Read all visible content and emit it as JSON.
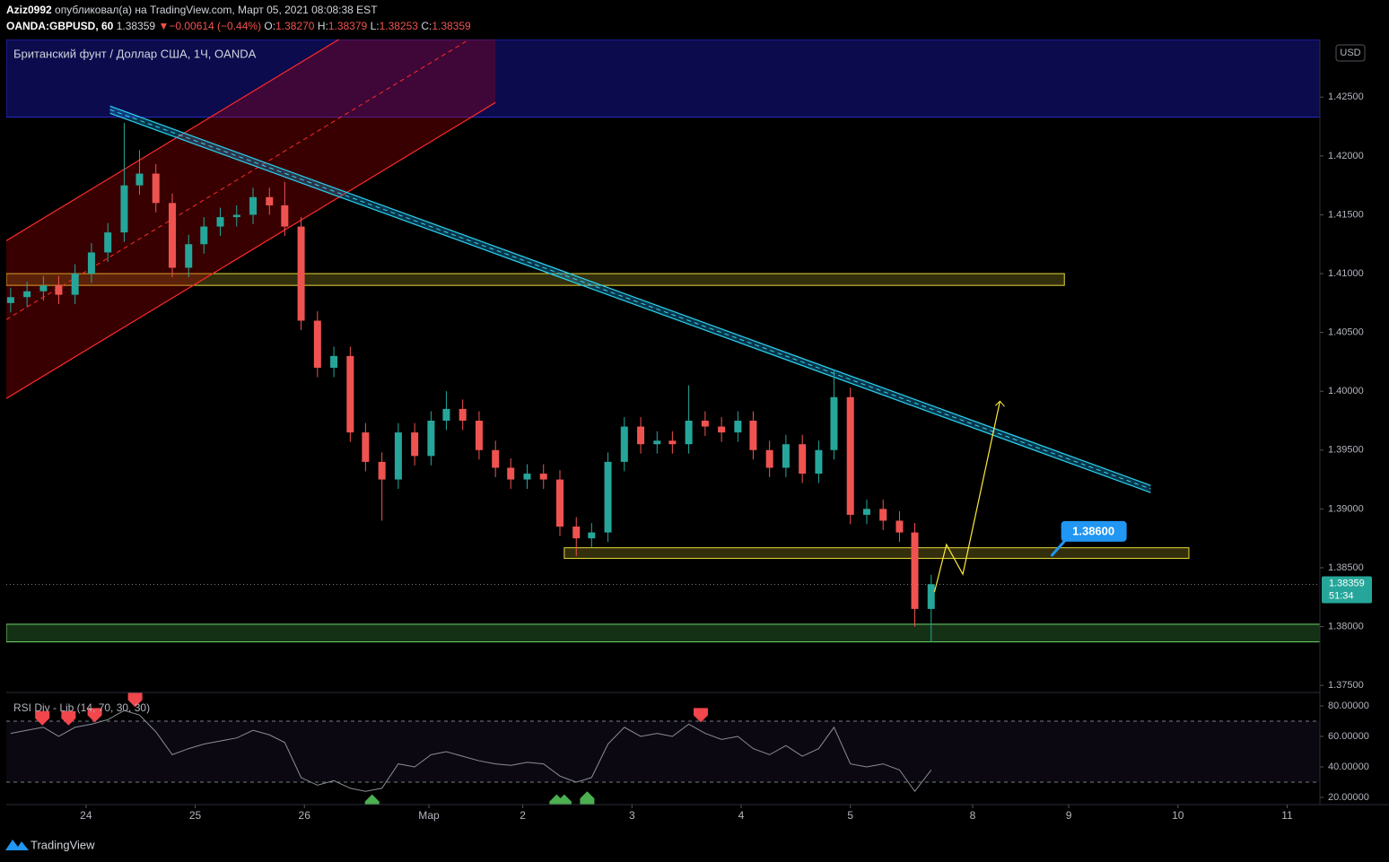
{
  "header": {
    "author": "Aziz0992",
    "published": "опубликовал(а) на TradingView.com, Март 05, 2021 08:08:38 EST",
    "symbol": "OANDA:GBPUSD, 60",
    "last": "1.38359",
    "arrow": "▼",
    "change": "−0.00614 (−0.44%)",
    "ohlc": [
      {
        "label": "O:",
        "value": "1.38270"
      },
      {
        "label": "H:",
        "value": "1.38379"
      },
      {
        "label": "L:",
        "value": "1.38253"
      },
      {
        "label": "C:",
        "value": "1.38359"
      }
    ]
  },
  "footer": "TradingView",
  "chart_data": {
    "type": "candlestick",
    "title": "Британский фунт / Доллар США, 1Ч, OANDA",
    "currency": "USD",
    "up_color": "#26a69a",
    "down_color": "#ef5350",
    "xlim": [
      -0.73,
      11.3
    ],
    "ylim": [
      1.3744,
      1.4299
    ],
    "xticks": [
      {
        "value": 0,
        "label": "24"
      },
      {
        "value": 1,
        "label": "25"
      },
      {
        "value": 2,
        "label": "26"
      },
      {
        "value": 3.14,
        "label": "Мар"
      },
      {
        "value": 4,
        "label": "2"
      },
      {
        "value": 5,
        "label": "3"
      },
      {
        "value": 6,
        "label": "4"
      },
      {
        "value": 7,
        "label": "5"
      },
      {
        "value": 8.12,
        "label": "8"
      },
      {
        "value": 9,
        "label": "9"
      },
      {
        "value": 10,
        "label": "10"
      },
      {
        "value": 11,
        "label": "11"
      }
    ],
    "yticks": [
      {
        "value": 1.425,
        "label": "1.42500"
      },
      {
        "value": 1.42,
        "label": "1.42000"
      },
      {
        "value": 1.415,
        "label": "1.41500"
      },
      {
        "value": 1.41,
        "label": "1.41000"
      },
      {
        "value": 1.405,
        "label": "1.40500"
      },
      {
        "value": 1.4,
        "label": "1.40000"
      },
      {
        "value": 1.395,
        "label": "1.39500"
      },
      {
        "value": 1.39,
        "label": "1.39000"
      },
      {
        "value": 1.385,
        "label": "1.38500"
      },
      {
        "value": 1.38,
        "label": "1.38000"
      },
      {
        "value": 1.375,
        "label": "1.37500"
      }
    ],
    "candles": {
      "x": [
        -0.69,
        -0.54,
        -0.39,
        -0.25,
        -0.1,
        0.05,
        0.2,
        0.35,
        0.49,
        0.64,
        0.79,
        0.94,
        1.08,
        1.23,
        1.38,
        1.53,
        1.68,
        1.82,
        1.97,
        2.12,
        2.27,
        2.42,
        2.56,
        2.71,
        2.86,
        3.01,
        3.16,
        3.3,
        3.45,
        3.6,
        3.75,
        3.89,
        4.04,
        4.19,
        4.34,
        4.49,
        4.63,
        4.78,
        4.93,
        5.08,
        5.23,
        5.37,
        5.52,
        5.67,
        5.82,
        5.97,
        6.11,
        6.26,
        6.41,
        6.56,
        6.71,
        6.85,
        7.0,
        7.15,
        7.3,
        7.45,
        7.59,
        7.74
      ],
      "open": [
        1.4075,
        1.408,
        1.4085,
        1.409,
        1.4082,
        1.41,
        1.4118,
        1.4135,
        1.4175,
        1.4185,
        1.416,
        1.4105,
        1.4125,
        1.414,
        1.4148,
        1.415,
        1.4165,
        1.4158,
        1.414,
        1.406,
        1.402,
        1.403,
        1.3965,
        1.394,
        1.3925,
        1.3965,
        1.3945,
        1.3975,
        1.3985,
        1.3975,
        1.395,
        1.3935,
        1.3925,
        1.393,
        1.3925,
        1.3885,
        1.3875,
        1.388,
        1.394,
        1.397,
        1.3955,
        1.3958,
        1.3955,
        1.3975,
        1.397,
        1.3965,
        1.3975,
        1.395,
        1.3935,
        1.3955,
        1.393,
        1.395,
        1.3995,
        1.3895,
        1.39,
        1.389,
        1.388,
        1.3815
      ],
      "high": [
        1.4088,
        1.4093,
        1.4098,
        1.4098,
        1.4108,
        1.4126,
        1.4143,
        1.4228,
        1.4205,
        1.4193,
        1.4168,
        1.4133,
        1.4148,
        1.4156,
        1.4158,
        1.4173,
        1.4173,
        1.4178,
        1.4148,
        1.4068,
        1.4038,
        1.4038,
        1.3973,
        1.3948,
        1.3973,
        1.3973,
        1.3983,
        1.4,
        1.3993,
        1.3983,
        1.3958,
        1.3943,
        1.3938,
        1.3938,
        1.3933,
        1.3893,
        1.3888,
        1.3948,
        1.3978,
        1.3978,
        1.3966,
        1.3966,
        1.4005,
        1.3983,
        1.3978,
        1.3983,
        1.3983,
        1.3958,
        1.3963,
        1.3963,
        1.3958,
        1.4018,
        1.4003,
        1.3908,
        1.3908,
        1.3898,
        1.3888,
        1.3844
      ],
      "low": [
        1.4067,
        1.4072,
        1.4077,
        1.4074,
        1.4074,
        1.4092,
        1.411,
        1.4127,
        1.4167,
        1.4152,
        1.4097,
        1.4097,
        1.4117,
        1.4132,
        1.414,
        1.4142,
        1.415,
        1.4132,
        1.4052,
        1.4012,
        1.4012,
        1.3957,
        1.3932,
        1.389,
        1.3917,
        1.3937,
        1.3937,
        1.3967,
        1.3967,
        1.3942,
        1.3927,
        1.3917,
        1.3917,
        1.3917,
        1.3877,
        1.386,
        1.3867,
        1.3872,
        1.3932,
        1.3947,
        1.3947,
        1.3947,
        1.3947,
        1.3962,
        1.3957,
        1.3957,
        1.3942,
        1.3927,
        1.3927,
        1.3922,
        1.3922,
        1.3942,
        1.3887,
        1.3887,
        1.3882,
        1.3872,
        1.38,
        1.3787
      ],
      "close": [
        1.408,
        1.4085,
        1.409,
        1.4082,
        1.41,
        1.4118,
        1.4135,
        1.4175,
        1.4185,
        1.416,
        1.4105,
        1.4125,
        1.414,
        1.4148,
        1.415,
        1.4165,
        1.4158,
        1.414,
        1.406,
        1.402,
        1.403,
        1.3965,
        1.394,
        1.3925,
        1.3965,
        1.3945,
        1.3975,
        1.3985,
        1.3975,
        1.395,
        1.3935,
        1.3925,
        1.393,
        1.3925,
        1.3885,
        1.3875,
        1.388,
        1.394,
        1.397,
        1.3955,
        1.3958,
        1.3955,
        1.3975,
        1.397,
        1.3965,
        1.3975,
        1.395,
        1.3935,
        1.3955,
        1.393,
        1.395,
        1.3995,
        1.3895,
        1.39,
        1.389,
        1.388,
        1.3815,
        1.3836
      ]
    },
    "zones": [
      {
        "x": [
          -0.73,
          11.3
        ],
        "y": [
          1.4233,
          1.4299
        ],
        "color": "#2929c8",
        "fill": "rgba(20,20,140,0.55)"
      },
      {
        "x": [
          -0.73,
          8.96
        ],
        "y": [
          1.409,
          1.41
        ],
        "color": "#e6d83a",
        "fill": "rgba(230,216,58,0.22)"
      },
      {
        "x": [
          4.38,
          10.1
        ],
        "y": [
          1.3858,
          1.3867
        ],
        "color": "#e6d83a",
        "fill": "rgba(230,216,58,0.22)"
      },
      {
        "x": [
          -0.73,
          11.3
        ],
        "y": [
          1.3787,
          1.3802
        ],
        "color": "#6fd66f",
        "fill": "rgba(60,140,60,0.35)"
      }
    ],
    "channels": [
      {
        "x": [
          -0.73,
          3.75
        ],
        "upper": [
          1.4128,
          1.43796
        ],
        "lower": [
          1.39939,
          1.42454
        ],
        "color": "#ff2a2a",
        "fill": "rgba(200,0,0,0.28)"
      },
      {
        "x": [
          0.22,
          9.75
        ],
        "upper": [
          1.42424,
          1.392
        ],
        "lower": [
          1.42363,
          1.39139
        ],
        "color": "#2ad4f0",
        "fill": "rgba(30,150,210,0.35)"
      }
    ],
    "projection": {
      "x": [
        7.77,
        7.88,
        8.03,
        8.37
      ],
      "y": [
        1.38293,
        1.38697,
        1.38445,
        1.39916
      ],
      "color": "#ffeb3b"
    },
    "price_callout": {
      "x": 8.84,
      "value": 1.386,
      "label": "1.38600"
    },
    "last_price": {
      "value": 1.38359,
      "label": "1.38359",
      "countdown": "51:34"
    },
    "rsi": {
      "title": "RSI Div - Lib (14, 70, 30, 30)",
      "ylim": [
        15.3,
        88.8
      ],
      "levels": [
        70,
        30
      ],
      "yticks": [
        {
          "value": 80,
          "label": "80.00000"
        },
        {
          "value": 60,
          "label": "60.00000"
        },
        {
          "value": 40,
          "label": "40.00000"
        },
        {
          "value": 20,
          "label": "20.00000"
        }
      ],
      "values": [
        62,
        64,
        66,
        60,
        66,
        68,
        71,
        77,
        74,
        63,
        48,
        52,
        55,
        57,
        59,
        64,
        61,
        56,
        33,
        28,
        31,
        26,
        24,
        26,
        42,
        40,
        48,
        50,
        47,
        44,
        42,
        41,
        43,
        42,
        34,
        30,
        33,
        55,
        66,
        60,
        62,
        60,
        68,
        62,
        58,
        60,
        52,
        48,
        54,
        47,
        52,
        66,
        42,
        40,
        42,
        38,
        24,
        38
      ],
      "bearish": {
        "x": [
          -0.4,
          -0.16,
          0.08,
          0.45,
          5.63
        ],
        "y": [
          66,
          66,
          68,
          78,
          68
        ]
      },
      "bullish": {
        "x": [
          2.62,
          4.31,
          4.38,
          4.59
        ],
        "y": [
          22,
          22,
          22,
          24
        ]
      }
    }
  }
}
